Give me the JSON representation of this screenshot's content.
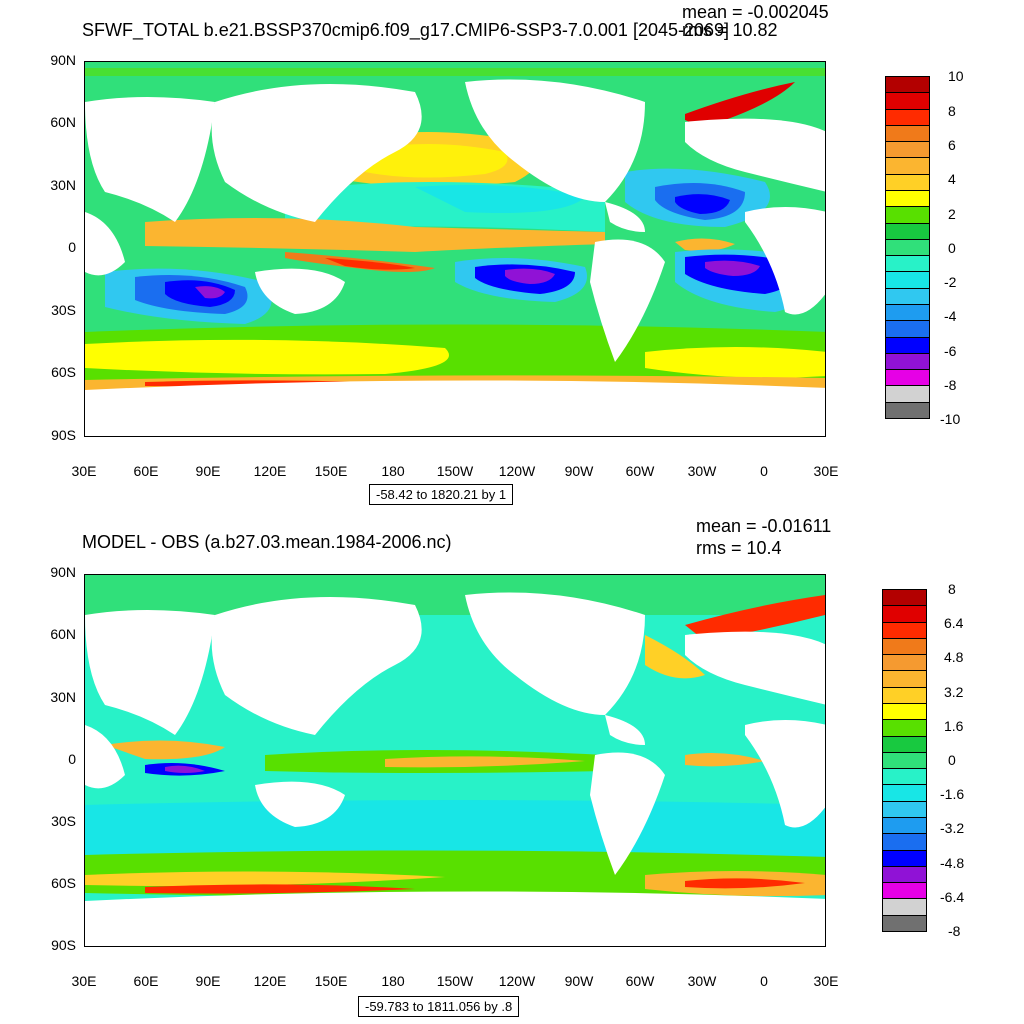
{
  "panels": [
    {
      "title": "SFWF_TOTAL b.e21.BSSP370cmip6.f09_g17.CMIP6-SSP3-7.0.001 [2045-2069]",
      "mean": "mean = -0.002045",
      "rms": "rms = 10.82",
      "range": "-58.42 to 1820.21 by 1",
      "lat_labels": [
        "90N",
        "60N",
        "30N",
        "0",
        "30S",
        "60S",
        "90S"
      ],
      "lon_labels": [
        "30E",
        "60E",
        "90E",
        "120E",
        "150E",
        "180",
        "150W",
        "120W",
        "90W",
        "60W",
        "30W",
        "0",
        "30E"
      ],
      "colorbar_labels": [
        "10",
        "8",
        "6",
        "4",
        "2",
        "0",
        "-2",
        "-4",
        "-6",
        "-8",
        "-10"
      ],
      "colorbar_colors": [
        "#b30000",
        "#e00000",
        "#ff2b00",
        "#f07a1a",
        "#f59a30",
        "#fbb530",
        "#ffd026",
        "#ffff00",
        "#58e000",
        "#18c940",
        "#30e07a",
        "#28f2c8",
        "#18e6e6",
        "#30c8f0",
        "#1e9cf0",
        "#1a6ef0",
        "#0000ff",
        "#9012d6",
        "#e600e6",
        "#d2d2d2",
        "#707070"
      ]
    },
    {
      "title": "MODEL - OBS (a.b27.03.mean.1984-2006.nc)",
      "mean": "mean = -0.01611",
      "rms": "rms = 10.4",
      "range": "-59.783 to 1811.056 by .8",
      "lat_labels": [
        "90N",
        "60N",
        "30N",
        "0",
        "30S",
        "60S",
        "90S"
      ],
      "lon_labels": [
        "30E",
        "60E",
        "90E",
        "120E",
        "150E",
        "180",
        "150W",
        "120W",
        "90W",
        "60W",
        "30W",
        "0",
        "30E"
      ],
      "colorbar_labels": [
        "8",
        "6.4",
        "4.8",
        "3.2",
        "1.6",
        "0",
        "-1.6",
        "-3.2",
        "-4.8",
        "-6.4",
        "-8"
      ],
      "colorbar_colors": [
        "#b30000",
        "#e00000",
        "#ff2b00",
        "#f07a1a",
        "#f59a30",
        "#fbb530",
        "#ffd026",
        "#ffff00",
        "#58e000",
        "#18c940",
        "#30e07a",
        "#28f2c8",
        "#18e6e6",
        "#30c8f0",
        "#1e9cf0",
        "#1a6ef0",
        "#0000ff",
        "#9012d6",
        "#e600e6",
        "#d2d2d2",
        "#707070"
      ]
    }
  ]
}
